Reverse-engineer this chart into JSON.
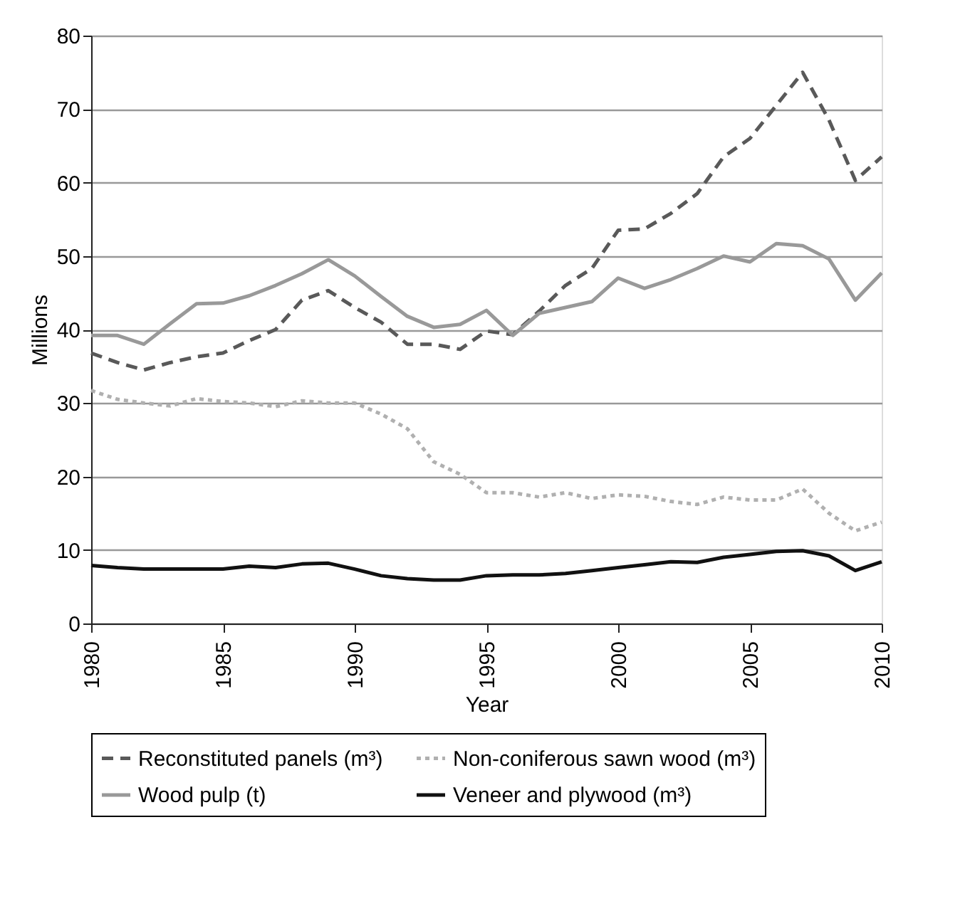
{
  "chart_data": {
    "type": "line",
    "xlabel": "Year",
    "ylabel": "Millions",
    "x": [
      1980,
      1981,
      1982,
      1983,
      1984,
      1985,
      1986,
      1987,
      1988,
      1989,
      1990,
      1991,
      1992,
      1993,
      1994,
      1995,
      1996,
      1997,
      1998,
      1999,
      2000,
      2001,
      2002,
      2003,
      2004,
      2005,
      2006,
      2007,
      2008,
      2009,
      2010
    ],
    "series": [
      {
        "name": "Reconstituted panels (m³)",
        "color": "#595959",
        "line_style": "dashed",
        "values": [
          36.8,
          35.5,
          34.5,
          35.5,
          36.3,
          36.8,
          38.5,
          40,
          44,
          45.3,
          43,
          41,
          38,
          38,
          37.3,
          39.8,
          39.3,
          42.5,
          46,
          48.3,
          53.5,
          53.7,
          55.8,
          58.5,
          63.5,
          66,
          70.5,
          75,
          68.5,
          60.3,
          63.5
        ]
      },
      {
        "name": "Non-coniferous sawn wood (m³)",
        "color": "#b0b0b0",
        "line_style": "dotted",
        "values": [
          31.7,
          30.5,
          30,
          29.6,
          30.6,
          30.2,
          30,
          29.5,
          30.3,
          30,
          30,
          28.5,
          26.5,
          22,
          20.3,
          17.8,
          17.8,
          17.2,
          17.8,
          17,
          17.5,
          17.3,
          16.6,
          16.2,
          17.2,
          16.8,
          16.8,
          18.3,
          15,
          12.6,
          13.8
        ]
      },
      {
        "name": "Wood pulp (t)",
        "color": "#999999",
        "line_style": "solid",
        "values": [
          39.2,
          39.2,
          38,
          40.8,
          43.5,
          43.6,
          44.6,
          46,
          47.6,
          49.5,
          47.3,
          44.5,
          41.8,
          40.3,
          40.7,
          42.6,
          39.2,
          42.2,
          43,
          43.8,
          47,
          45.6,
          46.8,
          48.3,
          50,
          49.2,
          51.7,
          51.4,
          49.6,
          44,
          47.7
        ]
      },
      {
        "name": "Veneer and plywood (m³)",
        "color": "#111111",
        "line_style": "solid",
        "values": [
          7.9,
          7.6,
          7.4,
          7.4,
          7.4,
          7.4,
          7.8,
          7.6,
          8.1,
          8.2,
          7.4,
          6.5,
          6.1,
          5.9,
          5.9,
          6.5,
          6.6,
          6.6,
          6.8,
          7.2,
          7.6,
          8,
          8.4,
          8.3,
          9,
          9.4,
          9.8,
          9.9,
          9.2,
          7.2,
          8.4
        ]
      }
    ],
    "xlim": [
      1980,
      2010
    ],
    "xticks": [
      1980,
      1985,
      1990,
      1995,
      2000,
      2005,
      2010
    ],
    "ylim": [
      0,
      80
    ],
    "yticks": [
      0,
      10,
      20,
      30,
      40,
      50,
      60,
      70,
      80
    ],
    "grid": "y",
    "legend": "bottom",
    "marker": "none"
  }
}
